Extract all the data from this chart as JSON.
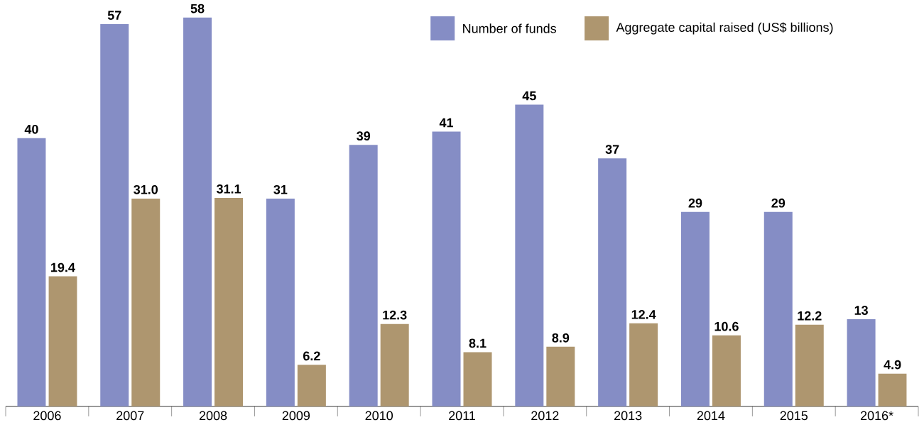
{
  "chart_data": {
    "type": "bar",
    "categories": [
      "2006",
      "2007",
      "2008",
      "2009",
      "2010",
      "2011",
      "2012",
      "2013",
      "2014",
      "2015",
      "2016*"
    ],
    "series": [
      {
        "name": "Number of funds",
        "color": "#858dc5",
        "values": [
          40,
          57,
          58,
          31,
          39,
          41,
          45,
          37,
          29,
          29,
          13
        ],
        "value_labels": [
          "40",
          "57",
          "58",
          "31",
          "39",
          "41",
          "45",
          "37",
          "29",
          "29",
          "13"
        ]
      },
      {
        "name": "Aggregate capital raised (US$ billions)",
        "color": "#ae966f",
        "values": [
          19.4,
          31.0,
          31.1,
          6.2,
          12.3,
          8.1,
          8.9,
          12.4,
          10.6,
          12.2,
          4.9
        ],
        "value_labels": [
          "19.4",
          "31.0",
          "31.1",
          "6.2",
          "12.3",
          "8.1",
          "8.9",
          "12.4",
          "10.6",
          "12.2",
          "4.9"
        ]
      }
    ],
    "legend": "top right"
  }
}
